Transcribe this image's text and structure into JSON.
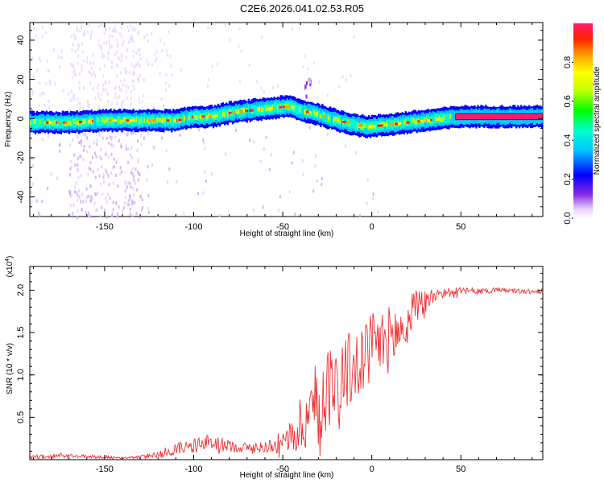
{
  "title": "C2E6.2026.041.02.53.R05",
  "chart_data": [
    {
      "type": "heatmap",
      "name": "spectrogram",
      "xlabel": "Height of straight line (km)",
      "ylabel": "Frequency (Hz)",
      "xlim": [
        -192,
        96
      ],
      "ylim": [
        -50,
        49
      ],
      "xticks": [
        -150,
        -100,
        -50,
        0,
        50
      ],
      "xtick_labels": [
        "-150",
        "-100",
        "-50",
        "0",
        "50"
      ],
      "yticks": [
        -40,
        -20,
        0,
        20,
        40
      ],
      "ytick_labels": [
        "-40",
        "-20",
        "0",
        "20",
        "40"
      ],
      "ridge": {
        "x": [
          -192,
          -170,
          -150,
          -130,
          -110,
          -100,
          -90,
          -80,
          -70,
          -60,
          -50,
          -45,
          -40,
          -30,
          -20,
          -10,
          -5,
          0,
          10,
          20,
          30,
          40,
          50,
          60,
          96
        ],
        "freq": [
          -2,
          -2,
          -1,
          -1,
          -1,
          1,
          1,
          3,
          4,
          5,
          6,
          6,
          4,
          2,
          -1,
          -3,
          -4,
          -4,
          -3,
          -2,
          -1,
          0,
          1,
          1,
          1
        ]
      },
      "colorbar": {
        "label": "Normalized spectral amplitude",
        "range": [
          0,
          1
        ],
        "ticks": [
          0.0,
          0.2,
          0.4,
          0.6,
          0.8
        ],
        "tick_labels": [
          "0.0",
          "0.2",
          "0.4",
          "0.6",
          "0.8"
        ]
      }
    },
    {
      "type": "line",
      "name": "snr",
      "xlabel": "Height of straight line (km)",
      "ylabel": "SNR (10 * v/v)",
      "y_multiplier": "(x10",
      "y_multiplier_exp": "4",
      "y_multiplier_close": ")",
      "xlim": [
        -192,
        96
      ],
      "ylim": [
        0,
        2.28
      ],
      "xticks": [
        -150,
        -100,
        -50,
        0,
        50
      ],
      "xtick_labels": [
        "-150",
        "-100",
        "-50",
        "0",
        "50"
      ],
      "yticks": [
        0.5,
        1.0,
        1.5,
        2.0
      ],
      "ytick_labels": [
        "0.5",
        "1.0",
        "1.5",
        "2.0"
      ],
      "color": "#ee3333",
      "series": [
        {
          "name": "SNR",
          "x": [
            -192,
            -175,
            -160,
            -150,
            -140,
            -130,
            -120,
            -110,
            -100,
            -90,
            -80,
            -70,
            -60,
            -50,
            -45,
            -40,
            -35,
            -30,
            -25,
            -20,
            -15,
            -10,
            -5,
            0,
            5,
            10,
            15,
            20,
            25,
            30,
            35,
            40,
            50,
            60,
            70,
            80,
            90,
            96
          ],
          "y": [
            0.03,
            0.05,
            0.04,
            0.03,
            0.02,
            0.03,
            0.07,
            0.13,
            0.17,
            0.2,
            0.16,
            0.14,
            0.15,
            0.22,
            0.28,
            0.38,
            0.58,
            0.72,
            0.85,
            0.95,
            1.02,
            1.08,
            1.2,
            1.3,
            1.38,
            1.42,
            1.5,
            1.6,
            1.75,
            1.88,
            1.94,
            1.97,
            1.99,
            1.99,
            2.0,
            1.99,
            1.98,
            1.99
          ],
          "noise": [
            0.02,
            0.03,
            0.02,
            0.02,
            0.01,
            0.02,
            0.04,
            0.07,
            0.09,
            0.1,
            0.07,
            0.06,
            0.07,
            0.12,
            0.2,
            0.35,
            0.45,
            0.5,
            0.5,
            0.5,
            0.5,
            0.45,
            0.45,
            0.45,
            0.4,
            0.4,
            0.35,
            0.35,
            0.25,
            0.15,
            0.1,
            0.07,
            0.04,
            0.03,
            0.03,
            0.03,
            0.03,
            0.03
          ]
        }
      ]
    }
  ],
  "colors": {
    "axis": "#000000",
    "snr_line": "#ee3333"
  }
}
